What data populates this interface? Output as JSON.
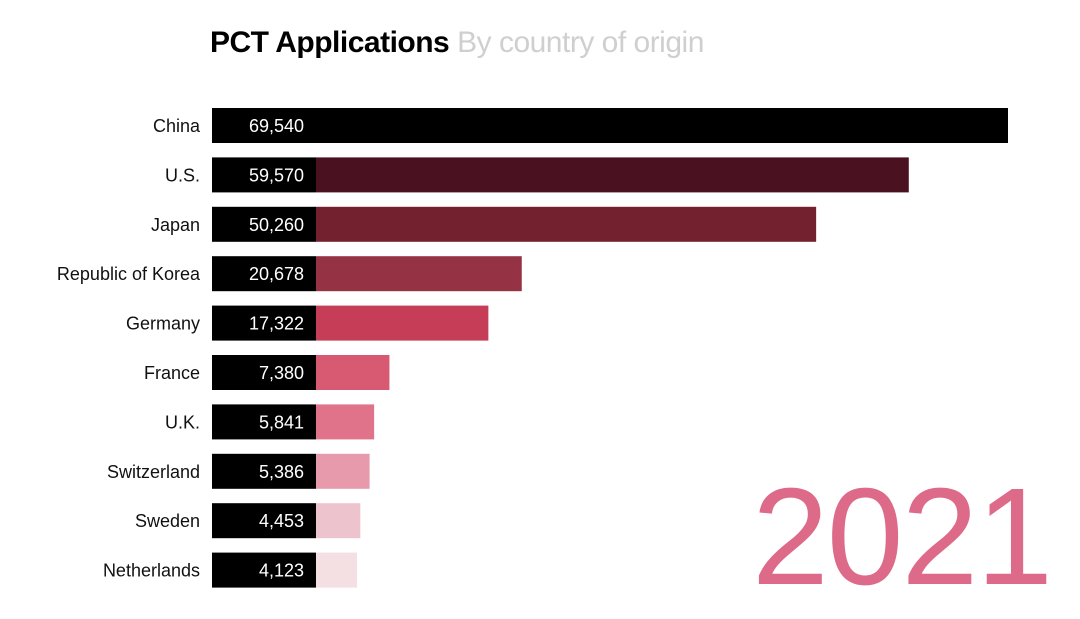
{
  "chart_data": {
    "type": "bar",
    "orientation": "horizontal",
    "title": "PCT Applications",
    "subtitle": "By country of origin",
    "year": "2021",
    "categories": [
      "China",
      "U.S.",
      "Japan",
      "Republic of Korea",
      "Germany",
      "France",
      "U.K.",
      "Switzerland",
      "Sweden",
      "Netherlands"
    ],
    "values": [
      69540,
      59570,
      50260,
      20678,
      17322,
      7380,
      5841,
      5386,
      4453,
      4123
    ],
    "value_labels": [
      "69,540",
      "59,570",
      "50,260",
      "20,678",
      "17,322",
      "7,380",
      "5,841",
      "5,386",
      "4,453",
      "4,123"
    ],
    "colors": [
      "#000000",
      "#4a1120",
      "#73202f",
      "#953344",
      "#c63d57",
      "#d85a72",
      "#e0738a",
      "#e69aac",
      "#edc3cd",
      "#f4dfe3"
    ],
    "label_box_color": "#000000",
    "year_color": "#dd6a88",
    "grid": false,
    "legend": "none"
  }
}
